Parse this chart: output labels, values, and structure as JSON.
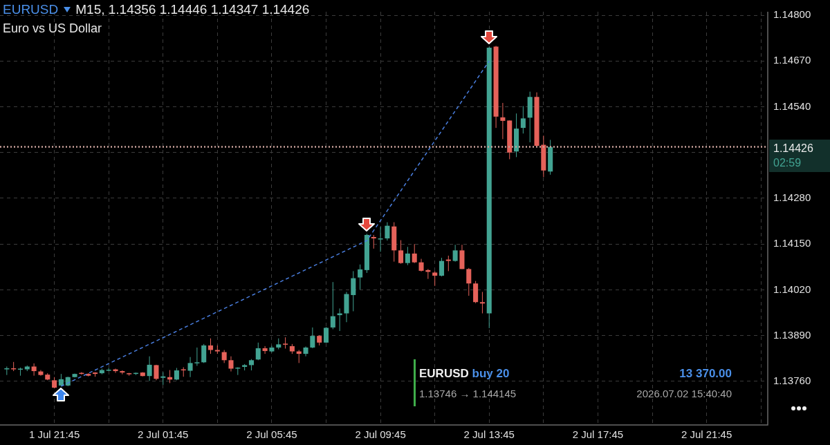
{
  "chart_data": {
    "type": "candlestick",
    "title": "EURUSD",
    "subtitle": "Euro vs US Dollar",
    "annotations": [
      "M15, 1.14356 1.14446 1.14347 1.14426",
      "02:59",
      "EURUSD",
      "buy 20",
      "1.13746 → 1.144145",
      "13 370.00",
      "2026.07.02 15:40:40"
    ],
    "xlim": [
      "2026-07-01T19:45",
      "2026-07-03T00:00"
    ],
    "xticks": [
      {
        "value": "2026-07-01T21:45",
        "label": "1 Jul 21:45"
      },
      {
        "value": "2026-07-01T23:45",
        "label": null
      },
      {
        "value": "2026-07-02T01:45",
        "label": "2 Jul 01:45"
      },
      {
        "value": "2026-07-02T03:45",
        "label": null
      },
      {
        "value": "2026-07-02T05:45",
        "label": "2 Jul 05:45"
      },
      {
        "value": "2026-07-02T07:45",
        "label": null
      },
      {
        "value": "2026-07-02T09:45",
        "label": "2 Jul 09:45"
      },
      {
        "value": "2026-07-02T11:45",
        "label": null
      },
      {
        "value": "2026-07-02T13:45",
        "label": "2 Jul 13:45"
      },
      {
        "value": "2026-07-02T15:45",
        "label": null
      },
      {
        "value": "2026-07-02T17:45",
        "label": "2 Jul 17:45"
      },
      {
        "value": "2026-07-02T19:45",
        "label": null
      },
      {
        "value": "2026-07-02T21:45",
        "label": "2 Jul 21:45"
      },
      {
        "value": "2026-07-02T23:45",
        "label": null
      }
    ],
    "ylim": [
      1.13636,
      1.1481
    ],
    "yticks": [
      {
        "value": 1.1376,
        "label": "1.13760"
      },
      {
        "value": 1.1389,
        "label": "1.13890"
      },
      {
        "value": 1.1402,
        "label": "1.14020"
      },
      {
        "value": 1.1415,
        "label": "1.14150"
      },
      {
        "value": 1.1428,
        "label": "1.14280"
      },
      {
        "value": 1.1441,
        "label": null
      },
      {
        "value": 1.1454,
        "label": "1.14540"
      },
      {
        "value": 1.1467,
        "label": "1.14670"
      },
      {
        "value": 1.148,
        "label": "1.14800"
      }
    ],
    "grid": true,
    "legend": false,
    "ref_lines": [
      {
        "axis": "y",
        "value": 1.14426,
        "label": "1.14426",
        "color": "#c9a19b",
        "line_style": "dotted"
      }
    ],
    "series": [
      {
        "x": [
          "2026-07-01T20:00",
          "2026-07-01T20:15",
          "2026-07-01T20:30",
          "2026-07-01T20:45",
          "2026-07-01T21:00",
          "2026-07-01T21:15",
          "2026-07-01T21:30",
          "2026-07-01T21:45",
          "2026-07-01T22:00",
          "2026-07-01T22:15",
          "2026-07-01T22:30",
          "2026-07-01T22:45",
          "2026-07-01T23:00",
          "2026-07-01T23:15",
          "2026-07-01T23:30",
          "2026-07-01T23:45",
          "2026-07-02T00:00",
          "2026-07-02T00:15",
          "2026-07-02T00:30",
          "2026-07-02T00:45",
          "2026-07-02T01:00",
          "2026-07-02T01:15",
          "2026-07-02T01:30",
          "2026-07-02T01:45",
          "2026-07-02T02:00",
          "2026-07-02T02:15",
          "2026-07-02T02:30",
          "2026-07-02T02:45",
          "2026-07-02T03:00",
          "2026-07-02T03:15",
          "2026-07-02T03:30",
          "2026-07-02T03:45",
          "2026-07-02T04:00",
          "2026-07-02T04:15",
          "2026-07-02T04:30",
          "2026-07-02T04:45",
          "2026-07-02T05:00",
          "2026-07-02T05:15",
          "2026-07-02T05:30",
          "2026-07-02T05:45",
          "2026-07-02T06:00",
          "2026-07-02T06:15",
          "2026-07-02T06:30",
          "2026-07-02T06:45",
          "2026-07-02T07:00",
          "2026-07-02T07:15",
          "2026-07-02T07:30",
          "2026-07-02T07:45",
          "2026-07-02T08:00",
          "2026-07-02T08:15",
          "2026-07-02T08:30",
          "2026-07-02T08:45",
          "2026-07-02T09:00",
          "2026-07-02T09:15",
          "2026-07-02T09:30",
          "2026-07-02T09:45",
          "2026-07-02T10:00",
          "2026-07-02T10:15",
          "2026-07-02T10:30",
          "2026-07-02T10:45",
          "2026-07-02T11:00",
          "2026-07-02T11:15",
          "2026-07-02T11:30",
          "2026-07-02T11:45",
          "2026-07-02T12:00",
          "2026-07-02T12:15",
          "2026-07-02T12:30",
          "2026-07-02T12:45",
          "2026-07-02T13:00",
          "2026-07-02T13:15",
          "2026-07-02T13:30",
          "2026-07-02T13:45",
          "2026-07-02T14:00",
          "2026-07-02T14:15",
          "2026-07-02T14:30",
          "2026-07-02T14:45",
          "2026-07-02T15:00",
          "2026-07-02T15:15",
          "2026-07-02T15:30",
          "2026-07-02T15:45",
          "2026-07-02T16:00"
        ],
        "ohlc": [
          [
            1.13794,
            1.13802,
            1.13778,
            1.13797
          ],
          [
            1.13797,
            1.13815,
            1.13789,
            1.13795
          ],
          [
            1.13794,
            1.13799,
            1.13776,
            1.13796
          ],
          [
            1.13794,
            1.13805,
            1.13789,
            1.13802
          ],
          [
            1.13802,
            1.13811,
            1.13776,
            1.13789
          ],
          [
            1.13788,
            1.13792,
            1.13776,
            1.13778
          ],
          [
            1.13779,
            1.13783,
            1.13763,
            1.13765
          ],
          [
            1.13763,
            1.13772,
            1.1374,
            1.13742
          ],
          [
            1.13748,
            1.13781,
            1.13746,
            1.13766
          ],
          [
            1.13748,
            1.13773,
            1.13746,
            1.13772
          ],
          [
            1.13772,
            1.13782,
            1.13771,
            1.13781
          ],
          [
            1.13784,
            1.13786,
            1.13779,
            1.13781
          ],
          [
            1.13781,
            1.13783,
            1.13774,
            1.13776
          ],
          [
            1.13785,
            1.13786,
            1.13773,
            1.13781
          ],
          [
            1.13783,
            1.13796,
            1.1378,
            1.13792
          ],
          [
            1.13792,
            1.13798,
            1.13789,
            1.13793
          ],
          [
            1.13794,
            1.13796,
            1.13784,
            1.13789
          ],
          [
            1.13789,
            1.13791,
            1.1378,
            1.13785
          ],
          [
            1.13783,
            1.13784,
            1.13776,
            1.1378
          ],
          [
            1.13781,
            1.13785,
            1.13778,
            1.13784
          ],
          [
            1.13785,
            1.13786,
            1.13774,
            1.13775
          ],
          [
            1.13775,
            1.13831,
            1.13761,
            1.13807
          ],
          [
            1.13806,
            1.13807,
            1.13763,
            1.13767
          ],
          [
            1.1377,
            1.13786,
            1.1375,
            1.13774
          ],
          [
            1.13772,
            1.13792,
            1.13755,
            1.13765
          ],
          [
            1.13765,
            1.13798,
            1.13763,
            1.13791
          ],
          [
            1.13794,
            1.138,
            1.13773,
            1.13792
          ],
          [
            1.1379,
            1.13829,
            1.13772,
            1.13812
          ],
          [
            1.13813,
            1.13856,
            1.13804,
            1.13814
          ],
          [
            1.13814,
            1.13866,
            1.13812,
            1.13862
          ],
          [
            1.13862,
            1.13882,
            1.13838,
            1.13849
          ],
          [
            1.13849,
            1.13862,
            1.13838,
            1.13845
          ],
          [
            1.13843,
            1.13849,
            1.13812,
            1.1382
          ],
          [
            1.1382,
            1.13831,
            1.13788,
            1.13796
          ],
          [
            1.13798,
            1.138,
            1.13778,
            1.13799
          ],
          [
            1.13801,
            1.13809,
            1.13791,
            1.13806
          ],
          [
            1.13806,
            1.13823,
            1.13791,
            1.1382
          ],
          [
            1.13822,
            1.1387,
            1.1382,
            1.13854
          ],
          [
            1.13854,
            1.1386,
            1.13838,
            1.13846
          ],
          [
            1.13845,
            1.13861,
            1.13842,
            1.13856
          ],
          [
            1.13856,
            1.13882,
            1.13851,
            1.13865
          ],
          [
            1.13867,
            1.13885,
            1.13853,
            1.13864
          ],
          [
            1.1386,
            1.13866,
            1.13838,
            1.13845
          ],
          [
            1.13845,
            1.13849,
            1.13812,
            1.13838
          ],
          [
            1.13838,
            1.13859,
            1.13831,
            1.13856
          ],
          [
            1.13856,
            1.13913,
            1.13854,
            1.13889
          ],
          [
            1.13889,
            1.13891,
            1.13862,
            1.1387
          ],
          [
            1.1387,
            1.13914,
            1.13869,
            1.13912
          ],
          [
            1.13913,
            1.14042,
            1.13908,
            1.13945
          ],
          [
            1.13948,
            1.13967,
            1.13903,
            1.13953
          ],
          [
            1.13953,
            1.14014,
            1.13928,
            1.14008
          ],
          [
            1.14005,
            1.14073,
            1.13959,
            1.14053
          ],
          [
            1.14055,
            1.14092,
            1.14021,
            1.14078
          ],
          [
            1.14076,
            1.14179,
            1.14068,
            1.14176
          ],
          [
            1.1417,
            1.14176,
            1.14137,
            1.14166
          ],
          [
            1.14165,
            1.14199,
            1.14128,
            1.14166
          ],
          [
            1.14166,
            1.14212,
            1.1416,
            1.14202
          ],
          [
            1.142,
            1.14212,
            1.141,
            1.14132
          ],
          [
            1.14132,
            1.14161,
            1.14094,
            1.14096
          ],
          [
            1.14096,
            1.14142,
            1.1409,
            1.14123
          ],
          [
            1.14123,
            1.1415,
            1.14096,
            1.14098
          ],
          [
            1.14098,
            1.14108,
            1.14072,
            1.14074
          ],
          [
            1.14076,
            1.14079,
            1.14051,
            1.14071
          ],
          [
            1.14069,
            1.14073,
            1.14031,
            1.1406
          ],
          [
            1.1406,
            1.14111,
            1.14058,
            1.14102
          ],
          [
            1.14106,
            1.14117,
            1.14073,
            1.14102
          ],
          [
            1.14102,
            1.14148,
            1.141,
            1.14132
          ],
          [
            1.14132,
            1.14148,
            1.14079,
            1.14079
          ],
          [
            1.14079,
            1.14082,
            1.14003,
            1.14038
          ],
          [
            1.14038,
            1.14045,
            1.13982,
            1.13985
          ],
          [
            1.13985,
            1.14014,
            1.13953,
            1.13981
          ],
          [
            1.13953,
            1.14711,
            1.13911,
            1.14708
          ],
          [
            1.14711,
            1.14713,
            1.1448,
            1.14512
          ],
          [
            1.1451,
            1.14551,
            1.14448,
            1.145
          ],
          [
            1.14501,
            1.14501,
            1.14391,
            1.1441
          ],
          [
            1.14413,
            1.14521,
            1.14397,
            1.14478
          ],
          [
            1.1448,
            1.14542,
            1.14464,
            1.14507
          ],
          [
            1.14509,
            1.14583,
            1.14439,
            1.14568
          ],
          [
            1.14568,
            1.14581,
            1.14426,
            1.14429
          ],
          [
            1.14432,
            1.14458,
            1.1434,
            1.14359
          ],
          [
            1.14356,
            1.14446,
            1.14347,
            1.14426
          ]
        ],
        "colors": [
          "#42a392",
          "#e5625a",
          "#42a392",
          "#42a392",
          "#e5625a",
          "#e5625a",
          "#e5625a",
          "#e5625a",
          "#42a392",
          "#42a392",
          "#42a392",
          "#e5625a",
          "#e5625a",
          "#e5625a",
          "#42a392",
          "#42a392",
          "#e5625a",
          "#e5625a",
          "#e5625a",
          "#42a392",
          "#e5625a",
          "#42a392",
          "#e5625a",
          "#42a392",
          "#e5625a",
          "#42a392",
          "#e5625a",
          "#42a392",
          "#42a392",
          "#42a392",
          "#e5625a",
          "#e5625a",
          "#e5625a",
          "#e5625a",
          "#42a392",
          "#42a392",
          "#42a392",
          "#42a392",
          "#e5625a",
          "#42a392",
          "#42a392",
          "#e5625a",
          "#e5625a",
          "#e5625a",
          "#42a392",
          "#42a392",
          "#e5625a",
          "#42a392",
          "#42a392",
          "#42a392",
          "#42a392",
          "#42a392",
          "#42a392",
          "#42a392",
          "#e5625a",
          "#42a392",
          "#42a392",
          "#e5625a",
          "#e5625a",
          "#42a392",
          "#e5625a",
          "#e5625a",
          "#e5625a",
          "#e5625a",
          "#42a392",
          "#e5625a",
          "#42a392",
          "#e5625a",
          "#e5625a",
          "#e5625a",
          "#e5625a",
          "#42a392",
          "#e5625a",
          "#e5625a",
          "#e5625a",
          "#42a392",
          "#42a392",
          "#42a392",
          "#e5625a",
          "#e5625a",
          "#42a392"
        ]
      },
      {
        "type": "line",
        "x": [
          "2026-07-01T22:00",
          "2026-07-02T09:15",
          "2026-07-02T13:45"
        ],
        "values": [
          1.13746,
          1.1416,
          1.1467
        ],
        "color": "#4a7fe0",
        "line_style": "dashed",
        "marker": "none"
      }
    ]
  }
}
